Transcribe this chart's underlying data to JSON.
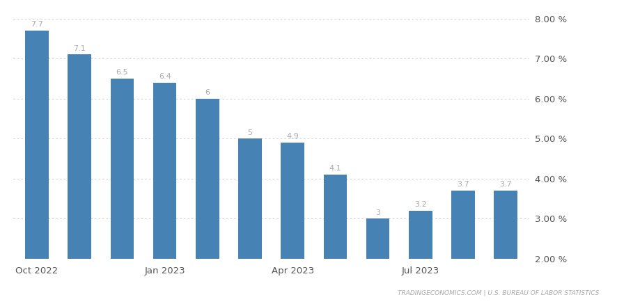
{
  "x_tick_labels": [
    "Oct 2022",
    "Jan 2023",
    "Apr 2023",
    "Jul 2023"
  ],
  "x_tick_positions": [
    0,
    3,
    6,
    9
  ],
  "values": [
    7.7,
    7.1,
    6.5,
    6.4,
    6.0,
    5.0,
    4.9,
    4.1,
    3.0,
    3.2,
    3.7,
    3.7
  ],
  "bar_color": "#4682b4",
  "background_color": "#ffffff",
  "ylim": [
    2.0,
    8.0
  ],
  "ybase": 2.0,
  "yticks": [
    2.0,
    3.0,
    4.0,
    5.0,
    6.0,
    7.0,
    8.0
  ],
  "grid_color": "#cccccc",
  "label_color": "#aaaaaa",
  "label_fontsize": 8.0,
  "tick_fontsize": 9.5,
  "tick_color": "#555555",
  "watermark": "TRADINGECONOMICS.COM | U.S. BUREAU OF LABOR STATISTICS",
  "bar_width": 0.55
}
